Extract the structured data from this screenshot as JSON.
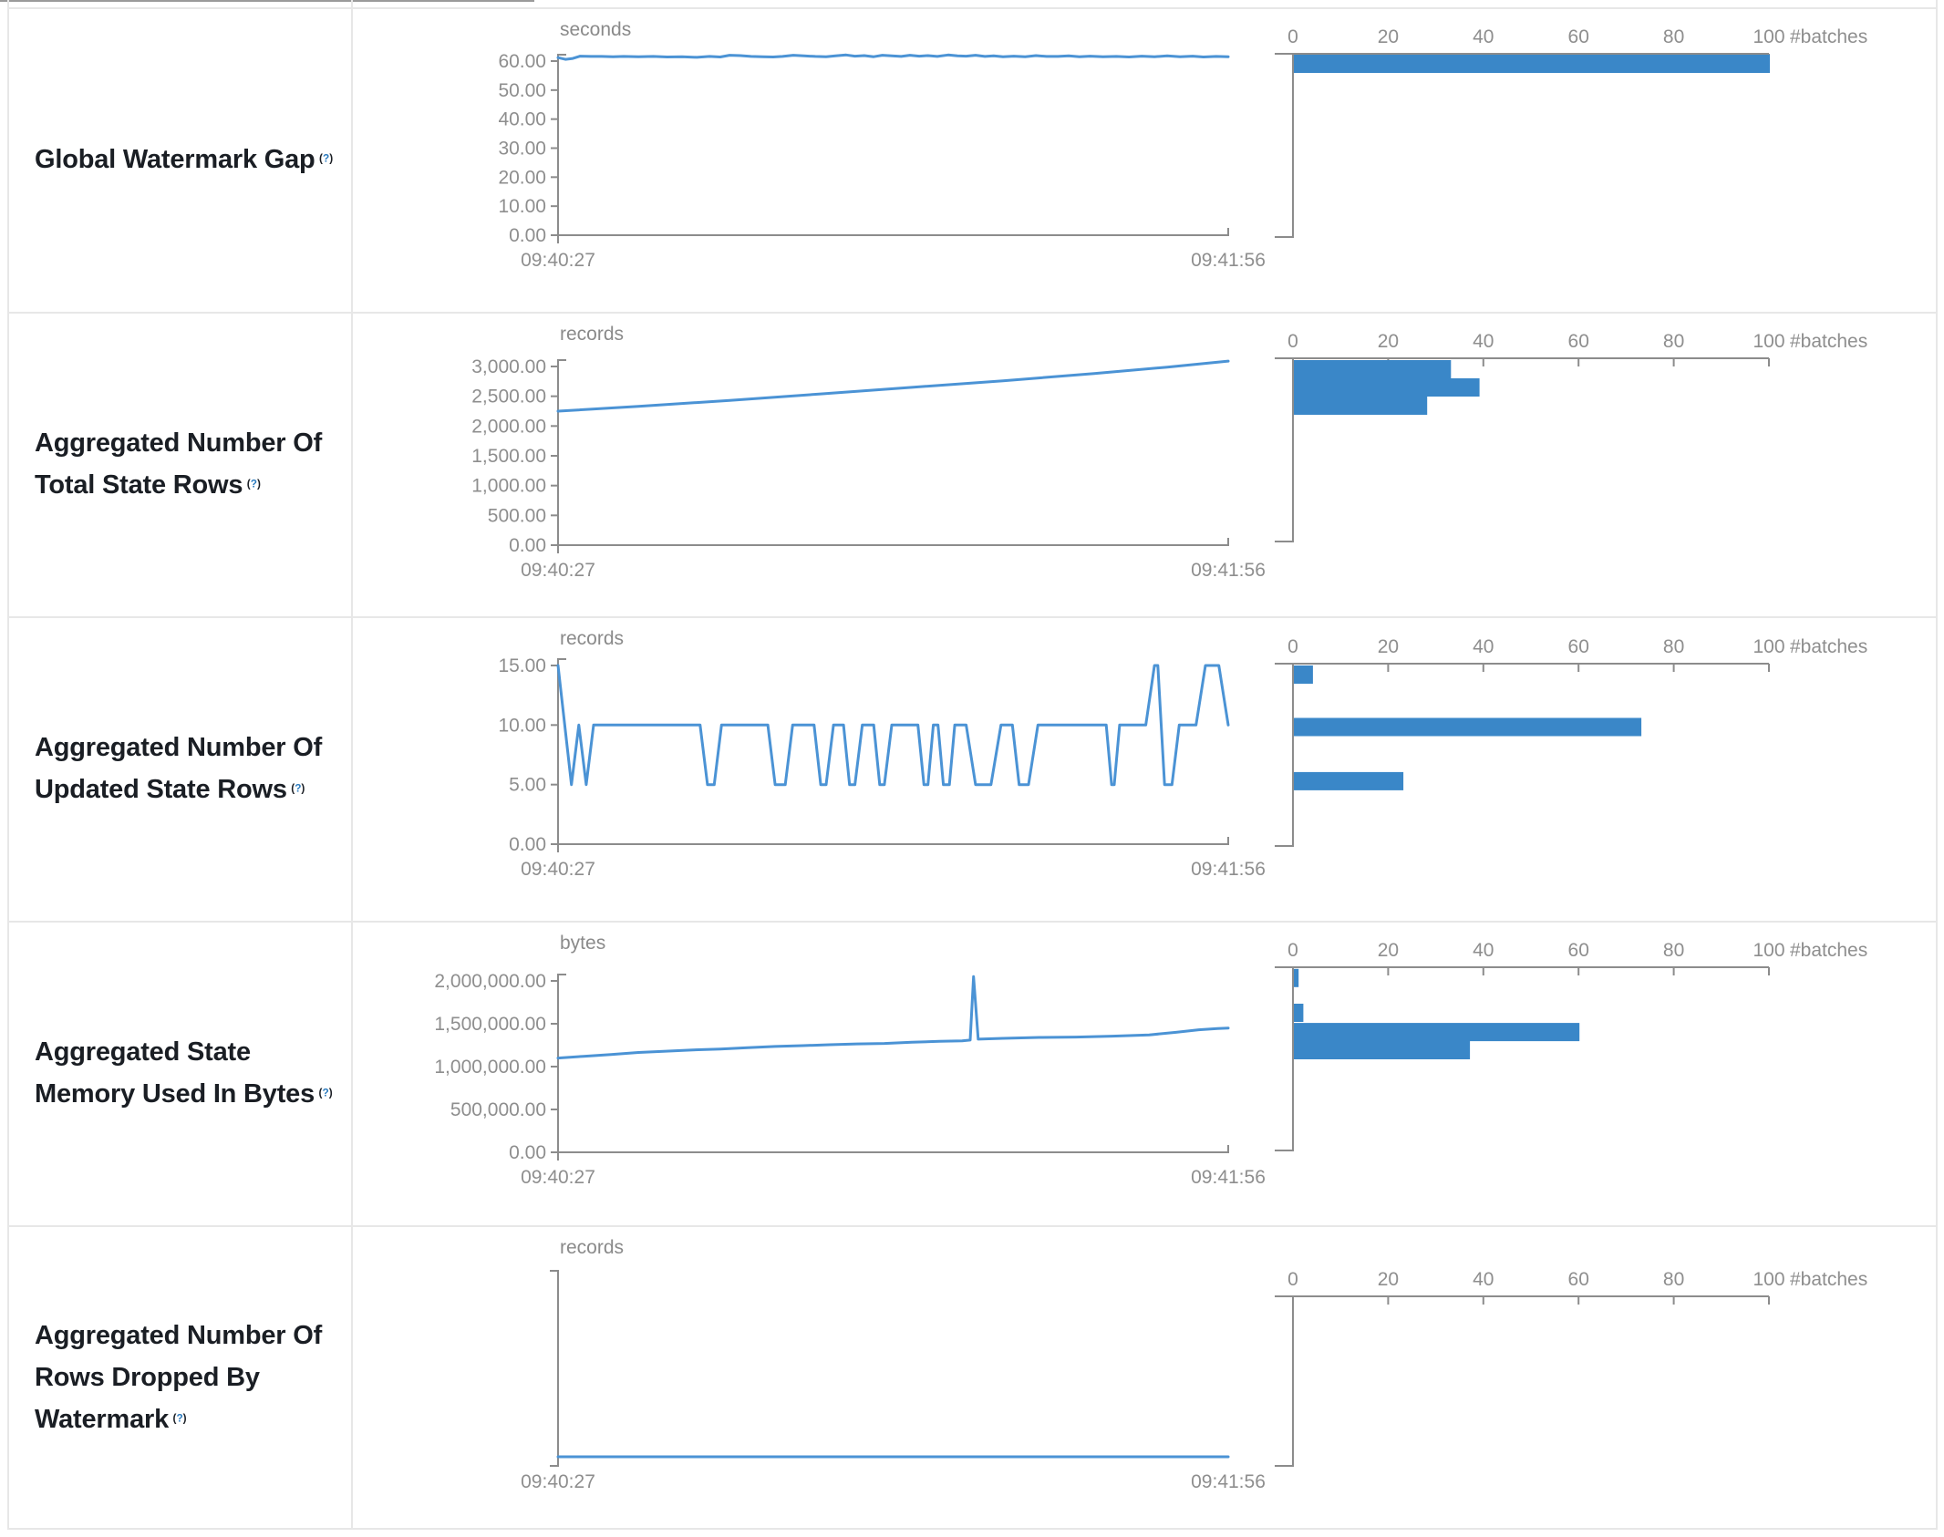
{
  "ui": {
    "help": {
      "open": "(",
      "q": "?",
      "close": ")"
    }
  },
  "colors": {
    "line": "#4b93d5",
    "bar": "#3a87c8",
    "axis": "#8c8c8c",
    "tick_text": "#8e8e8e",
    "label_text": "#1a1e24",
    "help_blue": "#2b7bbf",
    "border": "#e7e7e7"
  },
  "chart_data": {
    "type": "dashboard",
    "time_axis": {
      "start_label": "09:40:27",
      "end_label": "09:41:56"
    },
    "batch_axis": {
      "unit_label": "#batches",
      "ticks": [
        [
          "0",
          0
        ],
        [
          "20",
          20
        ],
        [
          "40",
          40
        ],
        [
          "60",
          60
        ],
        [
          "80",
          80
        ],
        [
          "100",
          100
        ]
      ],
      "max": 100
    },
    "rows": [
      {
        "label": "Global Watermark Gap",
        "timeline": {
          "type": "line",
          "unit_label": "seconds",
          "y_max": 60,
          "y_ticks": [
            [
              "60.00",
              60
            ],
            [
              "50.00",
              50
            ],
            [
              "40.00",
              40
            ],
            [
              "30.00",
              30
            ],
            [
              "20.00",
              20
            ],
            [
              "10.00",
              10
            ],
            [
              "0.00",
              0
            ]
          ],
          "points": [
            [
              0,
              61.2
            ],
            [
              0.011,
              60.6
            ],
            [
              0.022,
              60.9
            ],
            [
              0.033,
              61.7
            ],
            [
              0.049,
              61.6
            ],
            [
              0.065,
              61.6
            ],
            [
              0.082,
              61.5
            ],
            [
              0.098,
              61.6
            ],
            [
              0.12,
              61.5
            ],
            [
              0.142,
              61.6
            ],
            [
              0.163,
              61.4
            ],
            [
              0.185,
              61.5
            ],
            [
              0.207,
              61.3
            ],
            [
              0.226,
              61.6
            ],
            [
              0.242,
              61.4
            ],
            [
              0.256,
              62.0
            ],
            [
              0.272,
              61.9
            ],
            [
              0.288,
              61.6
            ],
            [
              0.305,
              61.5
            ],
            [
              0.321,
              61.4
            ],
            [
              0.335,
              61.6
            ],
            [
              0.351,
              62.0
            ],
            [
              0.367,
              61.8
            ],
            [
              0.384,
              61.6
            ],
            [
              0.4,
              61.5
            ],
            [
              0.414,
              61.8
            ],
            [
              0.43,
              62.1
            ],
            [
              0.443,
              61.7
            ],
            [
              0.457,
              61.9
            ],
            [
              0.471,
              61.5
            ],
            [
              0.484,
              62.0
            ],
            [
              0.498,
              61.8
            ],
            [
              0.512,
              61.6
            ],
            [
              0.525,
              62.0
            ],
            [
              0.539,
              61.7
            ],
            [
              0.552,
              61.9
            ],
            [
              0.566,
              61.6
            ],
            [
              0.582,
              62.1
            ],
            [
              0.596,
              61.8
            ],
            [
              0.609,
              61.7
            ],
            [
              0.623,
              62.0
            ],
            [
              0.637,
              61.6
            ],
            [
              0.65,
              61.8
            ],
            [
              0.664,
              61.5
            ],
            [
              0.68,
              61.7
            ],
            [
              0.697,
              61.5
            ],
            [
              0.713,
              61.9
            ],
            [
              0.729,
              61.6
            ],
            [
              0.746,
              61.6
            ],
            [
              0.762,
              61.8
            ],
            [
              0.778,
              61.5
            ],
            [
              0.794,
              61.7
            ],
            [
              0.813,
              61.5
            ],
            [
              0.833,
              61.6
            ],
            [
              0.852,
              61.4
            ],
            [
              0.871,
              61.7
            ],
            [
              0.89,
              61.5
            ],
            [
              0.909,
              61.8
            ],
            [
              0.928,
              61.5
            ],
            [
              0.947,
              61.7
            ],
            [
              0.963,
              61.4
            ],
            [
              0.982,
              61.6
            ],
            [
              1,
              61.5
            ]
          ]
        },
        "histogram": {
          "type": "bar",
          "bars": [
            {
              "bin_top_value": 62.2,
              "count": 100
            }
          ]
        }
      },
      {
        "label": "Aggregated Number Of Total State Rows",
        "timeline": {
          "type": "line",
          "unit_label": "records",
          "y_max": 3000,
          "y_ticks": [
            [
              "3,000.00",
              3000
            ],
            [
              "2,500.00",
              2500
            ],
            [
              "2,000.00",
              2000
            ],
            [
              "1,500.00",
              1500
            ],
            [
              "1,000.00",
              1000
            ],
            [
              "500.00",
              500
            ],
            [
              "0.00",
              0
            ]
          ],
          "points": [
            [
              0,
              2250
            ],
            [
              0.12,
              2330
            ],
            [
              0.256,
              2430
            ],
            [
              0.392,
              2540
            ],
            [
              0.528,
              2650
            ],
            [
              0.664,
              2760
            ],
            [
              0.8,
              2880
            ],
            [
              0.909,
              2990
            ],
            [
              1,
              3090
            ]
          ]
        },
        "histogram": {
          "type": "bar",
          "bars": [
            {
              "bin_top_value": 3107,
              "count": 33
            },
            {
              "bin_top_value": 2801,
              "count": 39
            },
            {
              "bin_top_value": 2495,
              "count": 28
            }
          ]
        }
      },
      {
        "label": "Aggregated Number Of Updated State Rows",
        "timeline": {
          "type": "line",
          "unit_label": "records",
          "y_max": 15,
          "y_ticks": [
            [
              "15.00",
              15
            ],
            [
              "10.00",
              10
            ],
            [
              "5.00",
              5
            ],
            [
              "0.00",
              0
            ]
          ],
          "points": [
            [
              0,
              15
            ],
            [
              0.02,
              5
            ],
            [
              0.031,
              10
            ],
            [
              0.042,
              5
            ],
            [
              0.053,
              10
            ],
            [
              0.212,
              10
            ],
            [
              0.223,
              5
            ],
            [
              0.233,
              5
            ],
            [
              0.244,
              10
            ],
            [
              0.313,
              10
            ],
            [
              0.324,
              5
            ],
            [
              0.339,
              5
            ],
            [
              0.35,
              10
            ],
            [
              0.382,
              10
            ],
            [
              0.392,
              5
            ],
            [
              0.4,
              5
            ],
            [
              0.411,
              10
            ],
            [
              0.426,
              10
            ],
            [
              0.435,
              5
            ],
            [
              0.443,
              5
            ],
            [
              0.454,
              10
            ],
            [
              0.471,
              10
            ],
            [
              0.48,
              5
            ],
            [
              0.487,
              5
            ],
            [
              0.498,
              10
            ],
            [
              0.512,
              10
            ],
            [
              0.537,
              10
            ],
            [
              0.546,
              5
            ],
            [
              0.552,
              5
            ],
            [
              0.56,
              10
            ],
            [
              0.567,
              10
            ],
            [
              0.575,
              5
            ],
            [
              0.584,
              5
            ],
            [
              0.592,
              10
            ],
            [
              0.609,
              10
            ],
            [
              0.623,
              5
            ],
            [
              0.646,
              5
            ],
            [
              0.661,
              10
            ],
            [
              0.678,
              10
            ],
            [
              0.688,
              5
            ],
            [
              0.702,
              5
            ],
            [
              0.716,
              10
            ],
            [
              0.818,
              10
            ],
            [
              0.826,
              5
            ],
            [
              0.83,
              5
            ],
            [
              0.838,
              10
            ],
            [
              0.877,
              10
            ],
            [
              0.89,
              15
            ],
            [
              0.895,
              15
            ],
            [
              0.905,
              5
            ],
            [
              0.916,
              5
            ],
            [
              0.927,
              10
            ],
            [
              0.952,
              10
            ],
            [
              0.966,
              15
            ],
            [
              0.986,
              15
            ],
            [
              1,
              10
            ]
          ]
        },
        "histogram": {
          "type": "bar",
          "bars": [
            {
              "bin_top_value": 15.0,
              "count": 4
            },
            {
              "bin_top_value": 10.6,
              "count": 73
            },
            {
              "bin_top_value": 6.05,
              "count": 23
            }
          ]
        }
      },
      {
        "label": "Aggregated State Memory Used In Bytes",
        "timeline": {
          "type": "line",
          "unit_label": "bytes",
          "y_max": 2000000,
          "y_ticks": [
            [
              "2,000,000.00",
              2000000
            ],
            [
              "1,500,000.00",
              1500000
            ],
            [
              "1,000,000.00",
              1000000
            ],
            [
              "500,000.00",
              500000
            ],
            [
              "0.00",
              0
            ]
          ],
          "points": [
            [
              0,
              1100000
            ],
            [
              0.038,
              1120000
            ],
            [
              0.079,
              1140000
            ],
            [
              0.12,
              1165000
            ],
            [
              0.161,
              1180000
            ],
            [
              0.201,
              1195000
            ],
            [
              0.242,
              1205000
            ],
            [
              0.283,
              1220000
            ],
            [
              0.324,
              1235000
            ],
            [
              0.365,
              1245000
            ],
            [
              0.405,
              1255000
            ],
            [
              0.446,
              1265000
            ],
            [
              0.487,
              1270000
            ],
            [
              0.528,
              1285000
            ],
            [
              0.569,
              1295000
            ],
            [
              0.603,
              1300000
            ],
            [
              0.615,
              1310000
            ],
            [
              0.62,
              2050000
            ],
            [
              0.627,
              1320000
            ],
            [
              0.664,
              1330000
            ],
            [
              0.718,
              1340000
            ],
            [
              0.773,
              1345000
            ],
            [
              0.827,
              1355000
            ],
            [
              0.882,
              1370000
            ],
            [
              0.922,
              1400000
            ],
            [
              0.956,
              1430000
            ],
            [
              0.984,
              1445000
            ],
            [
              1,
              1450000
            ]
          ]
        },
        "histogram": {
          "type": "bar",
          "bars": [
            {
              "bin_top_value": 2140000,
              "count": 1
            },
            {
              "bin_top_value": 1734000,
              "count": 2
            },
            {
              "bin_top_value": 1510000,
              "count": 60
            },
            {
              "bin_top_value": 1298000,
              "count": 37
            }
          ]
        }
      },
      {
        "label": "Aggregated Number Of Rows Dropped By Watermark",
        "timeline": {
          "type": "line",
          "unit_label": "records",
          "y_max": 1,
          "y_ticks": [],
          "points": [
            [
              0,
              0
            ],
            [
              1,
              0
            ]
          ]
        },
        "histogram": {
          "type": "bar",
          "bars": []
        }
      }
    ]
  }
}
